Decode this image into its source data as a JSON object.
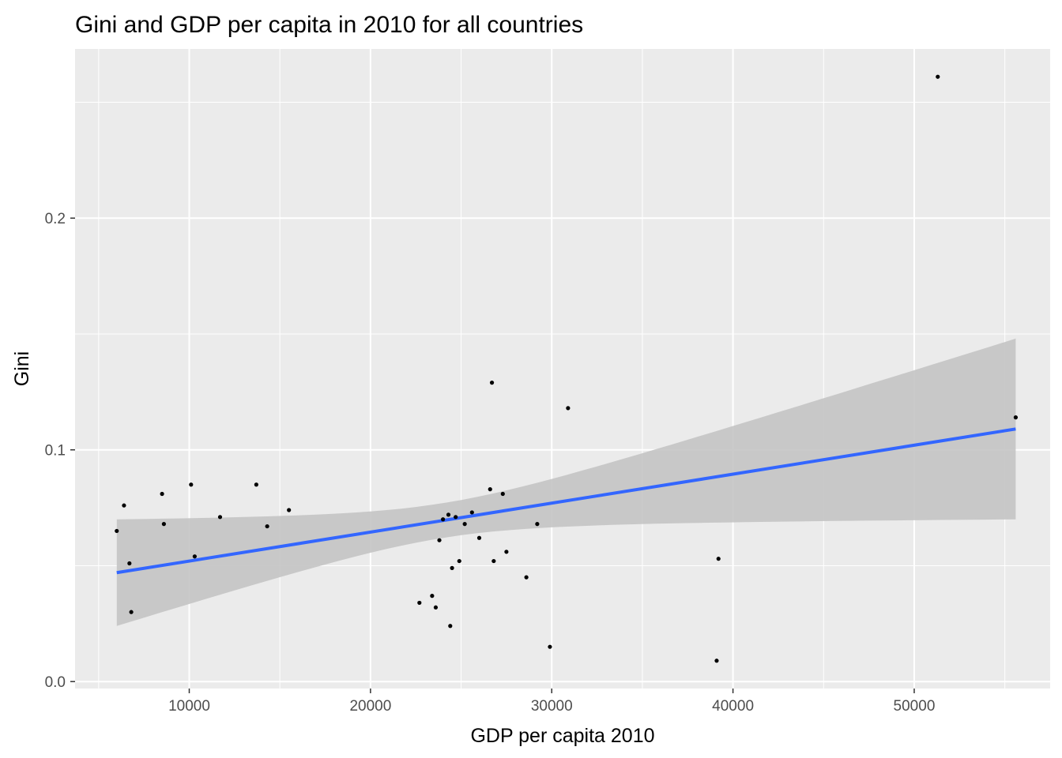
{
  "chart_data": {
    "type": "scatter",
    "title": "Gini and GDP per capita in 2010 for all countries",
    "xlabel": "GDP per capita 2010",
    "ylabel": "Gini",
    "xlim": [
      3700,
      57500
    ],
    "ylim": [
      -0.003,
      0.273
    ],
    "x_ticks": [
      10000,
      20000,
      30000,
      40000,
      50000
    ],
    "x_tick_labels": [
      "10000",
      "20000",
      "30000",
      "40000",
      "50000"
    ],
    "y_ticks": [
      0.0,
      0.1,
      0.2
    ],
    "y_tick_labels": [
      "0.0",
      "0.1",
      "0.2"
    ],
    "grid": true,
    "colors": {
      "panel_background": "#ebebeb",
      "grid": "#ffffff",
      "points": "#000000",
      "trend_line": "#3366ff",
      "confidence_band": "#c4c4c4"
    },
    "points": [
      {
        "x": 6000,
        "y": 0.065
      },
      {
        "x": 6400,
        "y": 0.076
      },
      {
        "x": 6700,
        "y": 0.051
      },
      {
        "x": 6800,
        "y": 0.03
      },
      {
        "x": 8500,
        "y": 0.081
      },
      {
        "x": 8600,
        "y": 0.068
      },
      {
        "x": 10100,
        "y": 0.085
      },
      {
        "x": 10300,
        "y": 0.054
      },
      {
        "x": 11700,
        "y": 0.071
      },
      {
        "x": 13700,
        "y": 0.085
      },
      {
        "x": 14300,
        "y": 0.067
      },
      {
        "x": 15500,
        "y": 0.074
      },
      {
        "x": 22700,
        "y": 0.034
      },
      {
        "x": 23400,
        "y": 0.037
      },
      {
        "x": 23600,
        "y": 0.032
      },
      {
        "x": 23800,
        "y": 0.061
      },
      {
        "x": 24000,
        "y": 0.07
      },
      {
        "x": 24300,
        "y": 0.072
      },
      {
        "x": 24400,
        "y": 0.024
      },
      {
        "x": 24500,
        "y": 0.049
      },
      {
        "x": 24700,
        "y": 0.071
      },
      {
        "x": 24900,
        "y": 0.052
      },
      {
        "x": 25200,
        "y": 0.068
      },
      {
        "x": 25600,
        "y": 0.073
      },
      {
        "x": 26000,
        "y": 0.062
      },
      {
        "x": 26600,
        "y": 0.083
      },
      {
        "x": 26700,
        "y": 0.129
      },
      {
        "x": 26800,
        "y": 0.052
      },
      {
        "x": 27300,
        "y": 0.081
      },
      {
        "x": 27500,
        "y": 0.056
      },
      {
        "x": 28600,
        "y": 0.045
      },
      {
        "x": 29200,
        "y": 0.068
      },
      {
        "x": 29900,
        "y": 0.015
      },
      {
        "x": 30900,
        "y": 0.118
      },
      {
        "x": 39100,
        "y": 0.009
      },
      {
        "x": 39200,
        "y": 0.053
      },
      {
        "x": 51300,
        "y": 0.261
      },
      {
        "x": 55600,
        "y": 0.114
      }
    ],
    "trend_line": {
      "method": "linear",
      "x": [
        6000,
        55600
      ],
      "y": [
        0.047,
        0.109
      ],
      "band": [
        {
          "x": 6000,
          "lower": 0.024,
          "upper": 0.07
        },
        {
          "x": 24000,
          "lower": 0.062,
          "upper": 0.075
        },
        {
          "x": 55600,
          "lower": 0.07,
          "upper": 0.148
        }
      ]
    }
  }
}
